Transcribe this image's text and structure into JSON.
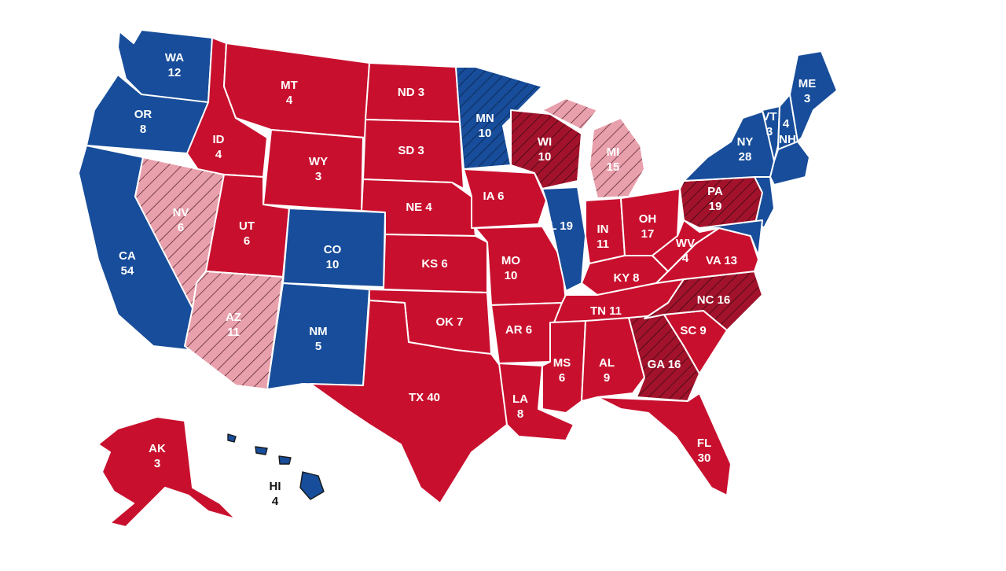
{
  "colors": {
    "republican": "#c8102e",
    "democrat": "#174d9a",
    "lean_republican": "#e8a0ac",
    "tilt_republican": "#a3122b",
    "tossup_dem": "#174d9a",
    "label": "#ffffff",
    "hatch": "#3a1016"
  },
  "states": [
    {
      "id": "WA",
      "abbr": "WA",
      "votes": "12",
      "party": "democrat",
      "hatched": false
    },
    {
      "id": "OR",
      "abbr": "OR",
      "votes": "8",
      "party": "democrat",
      "hatched": false
    },
    {
      "id": "CA",
      "abbr": "CA",
      "votes": "54",
      "party": "democrat",
      "hatched": false
    },
    {
      "id": "ID",
      "abbr": "ID",
      "votes": "4",
      "party": "republican",
      "hatched": false
    },
    {
      "id": "NV",
      "abbr": "NV",
      "votes": "6",
      "party": "lean_republican",
      "hatched": true
    },
    {
      "id": "MT",
      "abbr": "MT",
      "votes": "4",
      "party": "republican",
      "hatched": false
    },
    {
      "id": "WY",
      "abbr": "WY",
      "votes": "3",
      "party": "republican",
      "hatched": false
    },
    {
      "id": "UT",
      "abbr": "UT",
      "votes": "6",
      "party": "republican",
      "hatched": false
    },
    {
      "id": "AZ",
      "abbr": "AZ",
      "votes": "11",
      "party": "lean_republican",
      "hatched": true
    },
    {
      "id": "CO",
      "abbr": "CO",
      "votes": "10",
      "party": "democrat",
      "hatched": false
    },
    {
      "id": "NM",
      "abbr": "NM",
      "votes": "5",
      "party": "democrat",
      "hatched": false
    },
    {
      "id": "ND",
      "abbr": "ND",
      "votes": "3",
      "party": "republican",
      "hatched": false
    },
    {
      "id": "SD",
      "abbr": "SD",
      "votes": "3",
      "party": "republican",
      "hatched": false
    },
    {
      "id": "NE",
      "abbr": "NE",
      "votes": "4",
      "party": "republican",
      "hatched": false
    },
    {
      "id": "KS",
      "abbr": "KS",
      "votes": "6",
      "party": "republican",
      "hatched": false
    },
    {
      "id": "OK",
      "abbr": "OK",
      "votes": "7",
      "party": "republican",
      "hatched": false
    },
    {
      "id": "TX",
      "abbr": "TX",
      "votes": "40",
      "party": "republican",
      "hatched": false
    },
    {
      "id": "MN",
      "abbr": "MN",
      "votes": "10",
      "party": "democrat",
      "hatched": true
    },
    {
      "id": "IA",
      "abbr": "IA",
      "votes": "6",
      "party": "republican",
      "hatched": false
    },
    {
      "id": "MO",
      "abbr": "MO",
      "votes": "10",
      "party": "republican",
      "hatched": false
    },
    {
      "id": "AR",
      "abbr": "AR",
      "votes": "6",
      "party": "republican",
      "hatched": false
    },
    {
      "id": "LA",
      "abbr": "LA",
      "votes": "8",
      "party": "republican",
      "hatched": false
    },
    {
      "id": "WI",
      "abbr": "WI",
      "votes": "10",
      "party": "tilt_republican",
      "hatched": true
    },
    {
      "id": "IL",
      "abbr": "IL",
      "votes": "19",
      "party": "democrat",
      "hatched": false
    },
    {
      "id": "MI",
      "abbr": "MI",
      "votes": "15",
      "party": "lean_republican",
      "hatched": true
    },
    {
      "id": "IN",
      "abbr": "IN",
      "votes": "11",
      "party": "republican",
      "hatched": false
    },
    {
      "id": "OH",
      "abbr": "OH",
      "votes": "17",
      "party": "republican",
      "hatched": false
    },
    {
      "id": "KY",
      "abbr": "KY",
      "votes": "8",
      "party": "republican",
      "hatched": false
    },
    {
      "id": "TN",
      "abbr": "TN",
      "votes": "11",
      "party": "republican",
      "hatched": false
    },
    {
      "id": "MS",
      "abbr": "MS",
      "votes": "6",
      "party": "republican",
      "hatched": false
    },
    {
      "id": "AL",
      "abbr": "AL",
      "votes": "9",
      "party": "republican",
      "hatched": false
    },
    {
      "id": "GA",
      "abbr": "GA",
      "votes": "16",
      "party": "tilt_republican",
      "hatched": true
    },
    {
      "id": "FL",
      "abbr": "FL",
      "votes": "30",
      "party": "republican",
      "hatched": false
    },
    {
      "id": "SC",
      "abbr": "SC",
      "votes": "9",
      "party": "republican",
      "hatched": false
    },
    {
      "id": "NC",
      "abbr": "NC",
      "votes": "16",
      "party": "tilt_republican",
      "hatched": true
    },
    {
      "id": "VA",
      "abbr": "VA",
      "votes": "13",
      "party": "republican",
      "hatched": false
    },
    {
      "id": "WV",
      "abbr": "WV",
      "votes": "4",
      "party": "republican",
      "hatched": false
    },
    {
      "id": "PA",
      "abbr": "PA",
      "votes": "19",
      "party": "tilt_republican",
      "hatched": true
    },
    {
      "id": "NY",
      "abbr": "NY",
      "votes": "28",
      "party": "democrat",
      "hatched": false
    },
    {
      "id": "VT",
      "abbr": "VT",
      "votes": "3",
      "party": "democrat",
      "hatched": false
    },
    {
      "id": "NH",
      "abbr": "NH",
      "votes": "4",
      "party": "democrat",
      "hatched": false
    },
    {
      "id": "ME",
      "abbr": "ME",
      "votes": "3",
      "party": "democrat",
      "hatched": false
    },
    {
      "id": "NE_REGION",
      "abbr": "",
      "votes": "",
      "party": "democrat",
      "hatched": false
    },
    {
      "id": "MDDE",
      "abbr": "",
      "votes": "",
      "party": "democrat",
      "hatched": false
    },
    {
      "id": "NJ",
      "abbr": "",
      "votes": "",
      "party": "democrat",
      "hatched": false
    },
    {
      "id": "AK",
      "abbr": "AK",
      "votes": "3",
      "party": "republican",
      "hatched": false
    },
    {
      "id": "HI",
      "abbr": "HI",
      "votes": "4",
      "party": "democrat",
      "hatched": false
    }
  ]
}
